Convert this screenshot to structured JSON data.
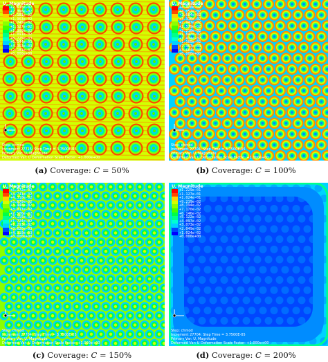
{
  "colors": {
    "scale": [
      "#0000ff",
      "#0046ff",
      "#008cff",
      "#00d2ff",
      "#00ffd2",
      "#00ff8c",
      "#00ff46",
      "#00ff00",
      "#46ff00",
      "#8cff00",
      "#d2ff00",
      "#ffd200",
      "#ff8c00",
      "#ff4600",
      "#ff0000"
    ],
    "caption_text": "#111111",
    "overlay_text": "#ffffff"
  },
  "panels": [
    {
      "id": "a",
      "legend_title": "U, Magnitude",
      "legend_values": [
        "+2.618e-02",
        "+2.396e-02",
        "+2.181e-02",
        "+1.963e-02",
        "+1.745e-02",
        "+1.527e-02",
        "+1.309e-02",
        "+1.091e-02",
        "+8.725e-03",
        "+6.544e-03",
        "+4.363e-03",
        "+2.181e-03",
        "+0.000e+00"
      ],
      "info_lines": [
        "Step: chmod",
        "Increment    27715: Step Time =    3.7500E-05",
        "Primary Var: U, Magnitude",
        "Deformed Var: U   Deformation Scale Factor: +1.000e+00"
      ],
      "caption_letter": "(a)",
      "caption_text": " Coverage: ",
      "caption_var": "C",
      "caption_value": " = 50%",
      "pattern": "grid"
    },
    {
      "id": "b",
      "legend_title": "U, Magnitude",
      "legend_values": [
        "+4.420e-02",
        "+4.052e-02",
        "+3.684e-02",
        "+3.316e-02",
        "+2.947e-02",
        "+2.579e-02",
        "+2.210e-02",
        "+1.842e-02",
        "+1.474e-02",
        "+1.105e-02",
        "+7.367e-03",
        "+3.684e-03",
        "+0.000e+00"
      ],
      "info_lines": [
        "Step: chmod",
        "Increment    27704: Step Time =    3.7500E-05",
        "Primary Var: U, Magnitude",
        "Deformed Var: U   Deformation Scale Factor: +1.000e+00"
      ],
      "caption_letter": "(b)",
      "caption_text": " Coverage: ",
      "caption_var": "C",
      "caption_value": " = 100%",
      "pattern": "diag"
    },
    {
      "id": "c",
      "legend_title": "U, Magnitude",
      "legend_values": [
        "+5.172e-02",
        "+4.741e-02",
        "+4.310e-02",
        "+3.879e-02",
        "+3.448e-02",
        "+3.017e-02",
        "+2.586e-02",
        "+2.155e-02",
        "+1.724e-02",
        "+1.293e-02",
        "+8.620e-03",
        "+4.310e-03",
        "+0.000e+00"
      ],
      "info_lines": [
        "Step: chmod",
        "Increment    27704: Step Time =    3.7500E-05",
        "Primary Var: U, Magnitude",
        "Deformed Var: U   Deformation Scale Factor: +1.000e+00"
      ],
      "caption_letter": "(c)",
      "caption_text": " Coverage: ",
      "caption_var": "C",
      "caption_value": " = 150%",
      "pattern": "dense"
    },
    {
      "id": "d",
      "legend_title": "U, Magnitude",
      "legend_values": [
        "+1.229e-01",
        "+1.127e-01",
        "+1.024e-01",
        "+9.219e-02",
        "+8.194e-02",
        "+7.170e-02",
        "+6.146e-02",
        "+5.122e-02",
        "+4.097e-02",
        "+3.073e-02",
        "+2.049e-02",
        "+1.024e-02",
        "+0.000e+00"
      ],
      "info_lines": [
        "Step: chmod",
        "Increment    27704: Step Time =    3.7500E-05",
        "Primary Var: U, Magnitude",
        "Deformed Var: U   Deformation Scale Factor: +1.000e+00"
      ],
      "caption_letter": "(d)",
      "caption_text": " Coverage: ",
      "caption_var": "C",
      "caption_value": " = 200%",
      "pattern": "blue"
    }
  ]
}
